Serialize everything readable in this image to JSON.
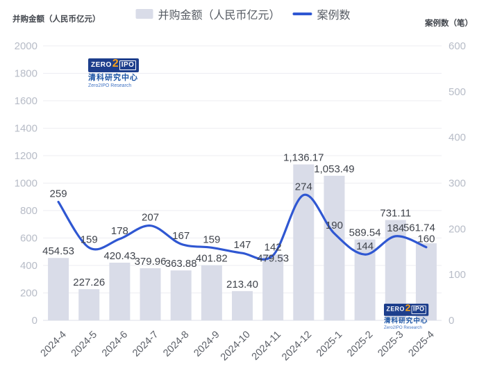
{
  "axis_titles": {
    "left": "并购金额（人民币亿元）",
    "right": "案例数（笔）"
  },
  "legend": {
    "items": [
      {
        "label": "并购金额（人民币亿元）",
        "type": "bar"
      },
      {
        "label": "案例数",
        "type": "line"
      }
    ]
  },
  "watermark": {
    "zero": "ZERO",
    "two": "2",
    "ipo": "IPO",
    "cn": "清科研究中心",
    "en": "Zero2IPO Research"
  },
  "chart_data": {
    "type": "bar",
    "categories": [
      "2024-4",
      "2024-5",
      "2024-6",
      "2024-7",
      "2024-8",
      "2024-9",
      "2024-10",
      "2024-11",
      "2024-12",
      "2025-1",
      "2025-2",
      "2025-3",
      "2025-4"
    ],
    "series": [
      {
        "name": "并购金额（人民币亿元）",
        "type": "bar",
        "yaxis": "left",
        "values": [
          454.53,
          227.26,
          420.43,
          379.96,
          363.88,
          401.82,
          213.4,
          479.53,
          1136.17,
          1053.49,
          589.54,
          731.11,
          561.74
        ],
        "labels": [
          "454.53",
          "227.26",
          "420.43",
          "379.96",
          "363.88",
          "401.82",
          "213.40",
          "479.53",
          "1,136.17",
          "1,053.49",
          "589.54",
          "731.11",
          "561.74"
        ]
      },
      {
        "name": "案例数",
        "type": "line",
        "yaxis": "right",
        "values": [
          259,
          159,
          178,
          207,
          167,
          159,
          147,
          142,
          274,
          190,
          144,
          184,
          160
        ],
        "labels": [
          "259",
          "159",
          "178",
          "207",
          "167",
          "159",
          "147",
          "142",
          "274",
          "190",
          "144",
          "184",
          "160"
        ]
      }
    ],
    "left_axis": {
      "title": "并购金额（人民币亿元）",
      "min": 0,
      "max": 2000,
      "interval": 200
    },
    "right_axis": {
      "title": "案例数（笔）",
      "min": 0,
      "max": 600,
      "interval": 100
    },
    "grid": true,
    "legend_position": "top",
    "smooth_line": true
  },
  "colors": {
    "bar": "#d9dce8",
    "line": "#2f57d2",
    "grid": "#ededf2",
    "axis_line": "#dfe2e9",
    "tick_text": "#b7bcc7",
    "xlabel_text": "#5c6068",
    "label_text": "#3f434b",
    "axis_title_text": "#42464d",
    "legend_text": "#565b63",
    "logo_navy": "#1d3e8c",
    "logo_orange": "#f7a11a",
    "logo_cn": "#1d55a5",
    "logo_en": "#4274c4"
  }
}
